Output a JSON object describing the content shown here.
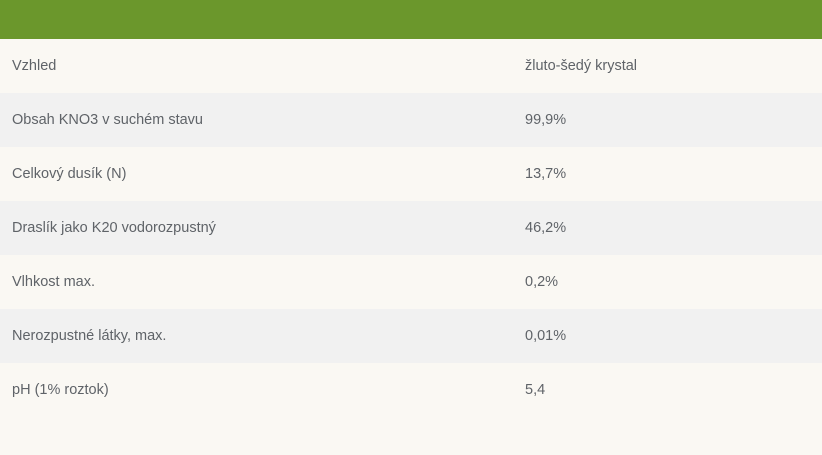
{
  "table": {
    "rows": [
      {
        "label": "Vzhled",
        "value": "žluto-šedý krystal"
      },
      {
        "label": "Obsah KNO3 v suchém stavu",
        "value": "99,9%"
      },
      {
        "label": "Celkový dusík (N)",
        "value": "13,7%"
      },
      {
        "label": "Draslík jako K20 vodorozpustný",
        "value": "46,2%"
      },
      {
        "label": "Vlhkost max.",
        "value": "0,2%"
      },
      {
        "label": "Nerozpustné látky, max.",
        "value": "0,01%"
      },
      {
        "label": "pH (1% roztok)",
        "value": "5,4"
      }
    ]
  },
  "colors": {
    "header_band": "#6b972c",
    "row_light": "#faf8f3",
    "row_alt": "#f1f1f1",
    "text": "#5f6368"
  }
}
